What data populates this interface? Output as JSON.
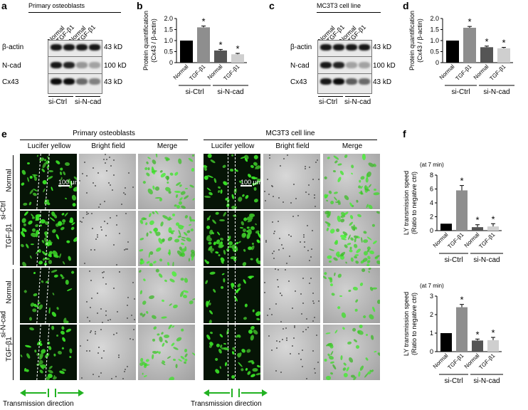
{
  "panels": {
    "a": {
      "label": "a",
      "title": "Primary osteoblasts",
      "lanes": [
        "Normal",
        "TGF-β1",
        "Normal",
        "TGF-β1"
      ],
      "rows": [
        "β-actin",
        "N-cad",
        "Cx43"
      ],
      "sizes": [
        "43 kD",
        "100 kD",
        "43 kD"
      ],
      "groups": [
        "si-Ctrl",
        "si-N-cad"
      ]
    },
    "c": {
      "label": "c",
      "title": "MC3T3 cell line",
      "lanes": [
        "Normal",
        "TGF-β1",
        "Normal",
        "TGF-β1"
      ],
      "rows": [
        "β-actin",
        "N-cad",
        "Cx43"
      ],
      "sizes": [
        "43 kD",
        "100 kD",
        "43 kD"
      ],
      "groups": [
        "si-Ctrl",
        "si-N-cad"
      ]
    },
    "b": {
      "label": "b"
    },
    "d": {
      "label": "d"
    },
    "e": {
      "label": "e",
      "groups": [
        "Primary osteoblasts",
        "MC3T3 cell line"
      ],
      "columns": [
        "Lucifer yellow",
        "Bright field",
        "Merge"
      ],
      "rows": [
        "Normal",
        "TGF-β1",
        "Normal",
        "TGF-β1"
      ],
      "row_groups": [
        "si-Ctrl",
        "si-N-cad"
      ],
      "scale_bar": "100 μm",
      "transmission": "Transmission direction"
    },
    "f": {
      "label": "f"
    }
  },
  "chart_data": [
    {
      "id": "b",
      "type": "bar",
      "categories": [
        "Normal",
        "TGF-β1",
        "Normal",
        "TGF-β1"
      ],
      "groups": [
        "si-Ctrl",
        "si-N-cad"
      ],
      "values": [
        1.0,
        1.6,
        0.55,
        0.38
      ],
      "errors": [
        0,
        0.06,
        0.05,
        0.04
      ],
      "significance": [
        "",
        "*",
        "*",
        "*"
      ],
      "colors": [
        "#000000",
        "#8e8e8e",
        "#555555",
        "#cfcfcf"
      ],
      "ylabel": "Protein quantification (Cx43 / β-actin)",
      "ylabel_lines": [
        "Protein quantification",
        "(Cx43 / β-actin)"
      ],
      "ylim": [
        0,
        2.0
      ],
      "yticks": [
        "0",
        "0.5",
        "1.0",
        "1.5",
        "2.0"
      ],
      "ytick_values": [
        0,
        0.5,
        1.0,
        1.5,
        2.0
      ]
    },
    {
      "id": "d",
      "type": "bar",
      "categories": [
        "Normal",
        "TGF-β1",
        "Normal",
        "TGF-β1"
      ],
      "groups": [
        "si-Ctrl",
        "si-N-cad"
      ],
      "values": [
        1.0,
        1.58,
        0.7,
        0.65
      ],
      "errors": [
        0,
        0.06,
        0.05,
        0.04
      ],
      "significance": [
        "",
        "*",
        "*",
        "*"
      ],
      "colors": [
        "#000000",
        "#8e8e8e",
        "#555555",
        "#cfcfcf"
      ],
      "ylabel": "Protein quantification (Cx43 / β-actin)",
      "ylabel_lines": [
        "Protein quantification",
        "(Cx43 / β-actin)"
      ],
      "ylim": [
        0,
        2.0
      ],
      "yticks": [
        "0",
        "0.5",
        "1.0",
        "1.5",
        "2.0"
      ],
      "ytick_values": [
        0,
        0.5,
        1.0,
        1.5,
        2.0
      ]
    },
    {
      "id": "f1",
      "type": "bar",
      "note": "(at 7 min)",
      "categories": [
        "Normal",
        "TGF-β1",
        "Normal",
        "TGF-β1"
      ],
      "groups": [
        "si-Ctrl",
        "si-N-cad"
      ],
      "values": [
        1.0,
        5.8,
        0.5,
        0.6
      ],
      "errors": [
        0,
        0.7,
        0.35,
        0.4
      ],
      "significance": [
        "",
        "*",
        "*",
        "*"
      ],
      "colors": [
        "#000000",
        "#8e8e8e",
        "#555555",
        "#cfcfcf"
      ],
      "ylabel": "LY transmission speed (Ratio to negative ctrl)",
      "ylabel_lines": [
        "LY transmission speed",
        "(Ratio to negative ctrl)"
      ],
      "ylim": [
        0,
        8
      ],
      "yticks": [
        "0",
        "2",
        "4",
        "6",
        "8"
      ],
      "ytick_values": [
        0,
        2,
        4,
        6,
        8
      ]
    },
    {
      "id": "f2",
      "type": "bar",
      "note": "(at 7 min)",
      "categories": [
        "Normal",
        "TGF-β1",
        "Normal",
        "TGF-β1"
      ],
      "groups": [
        "si-Ctrl",
        "si-N-cad"
      ],
      "values": [
        1.0,
        2.4,
        0.6,
        0.62
      ],
      "errors": [
        0,
        0.15,
        0.08,
        0.15
      ],
      "significance": [
        "",
        "*",
        "*",
        "*"
      ],
      "colors": [
        "#000000",
        "#8e8e8e",
        "#555555",
        "#cfcfcf"
      ],
      "ylabel": "LY transmission speed (Ratio to negative ctrl)",
      "ylabel_lines": [
        "LY transmission speed",
        "(Ratio to negative ctrl)"
      ],
      "ylim": [
        0,
        3
      ],
      "yticks": [
        "0",
        "1",
        "2",
        "3"
      ],
      "ytick_values": [
        0,
        1,
        2,
        3
      ]
    }
  ]
}
